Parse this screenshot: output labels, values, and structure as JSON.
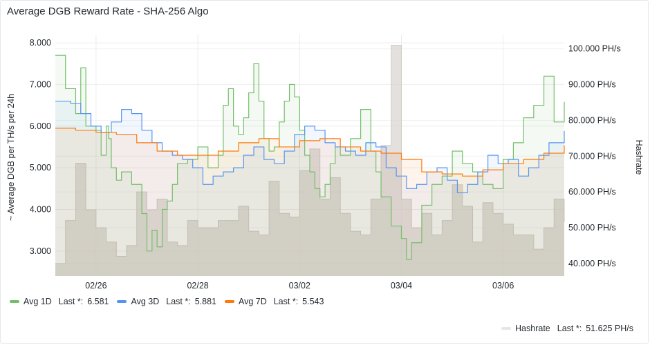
{
  "panel": {
    "title": "Average DGB Reward Rate - SHA-256 Algo"
  },
  "legend": {
    "items": [
      {
        "name": "Avg 1D",
        "last_label": "Last *:",
        "last_value": "6.581",
        "color": "#73bf69"
      },
      {
        "name": "Avg 3D",
        "last_label": "Last *:",
        "last_value": "5.881",
        "color": "#5794f2"
      },
      {
        "name": "Avg 7D",
        "last_label": "Last *:",
        "last_value": "5.543",
        "color": "#ff780a"
      }
    ],
    "hashrate": {
      "name": "Hashrate",
      "last_label": "Last *:",
      "last_value": "51.625 PH/s",
      "color": "#e0e0e0"
    }
  },
  "chart_data": {
    "type": "line",
    "xlabel": "",
    "ylabel": "~ Average DGB per TH/s per 24h",
    "y2label": "Hashrate",
    "x_range_days": [
      0,
      10.0
    ],
    "x_tick_labels": [
      "02/26",
      "02/28",
      "03/02",
      "03/04",
      "03/06"
    ],
    "x_tick_positions_days": [
      0.8,
      2.8,
      4.8,
      6.8,
      8.8
    ],
    "ylim": [
      2.4,
      8.2
    ],
    "y_ticks": [
      "3.000",
      "4.000",
      "5.000",
      "6.000",
      "7.000",
      "8.000"
    ],
    "y2lim": [
      36.5,
      104
    ],
    "y2_ticks": [
      "40.000 PH/s",
      "50.000 PH/s",
      "60.000 PH/s",
      "70.000 PH/s",
      "80.000 PH/s",
      "90.000 PH/s",
      "100.000 PH/s"
    ],
    "grid": true,
    "legend_placement": "bottom-left",
    "series": [
      {
        "name": "Avg 1D",
        "axis": "left",
        "color": "#73bf69",
        "x": [
          0.0,
          0.2,
          0.4,
          0.5,
          0.6,
          0.8,
          0.9,
          1.0,
          1.05,
          1.1,
          1.2,
          1.3,
          1.5,
          1.7,
          1.8,
          1.9,
          2.0,
          2.1,
          2.2,
          2.3,
          2.4,
          2.6,
          2.8,
          3.0,
          3.2,
          3.3,
          3.4,
          3.5,
          3.6,
          3.7,
          3.8,
          3.9,
          4.0,
          4.1,
          4.2,
          4.3,
          4.4,
          4.5,
          4.6,
          4.7,
          4.8,
          4.9,
          5.0,
          5.1,
          5.2,
          5.3,
          5.4,
          5.5,
          5.6,
          5.8,
          6.0,
          6.2,
          6.3,
          6.4,
          6.6,
          6.8,
          6.9,
          7.0,
          7.2,
          7.4,
          7.6,
          7.8,
          8.0,
          8.2,
          8.4,
          8.6,
          8.8,
          9.0,
          9.2,
          9.4,
          9.6,
          9.8,
          10.0
        ],
        "y": [
          7.7,
          6.9,
          6.3,
          7.4,
          6.0,
          5.9,
          5.3,
          6.0,
          5.7,
          5.0,
          4.7,
          4.9,
          4.6,
          3.9,
          3.0,
          3.5,
          3.1,
          4.0,
          4.2,
          4.6,
          5.1,
          5.2,
          5.5,
          5.0,
          5.3,
          6.5,
          6.9,
          6.0,
          5.8,
          6.2,
          6.8,
          7.5,
          6.6,
          5.7,
          5.4,
          5.5,
          6.1,
          6.6,
          7.0,
          6.7,
          5.9,
          5.3,
          4.9,
          4.5,
          4.3,
          4.6,
          5.1,
          5.5,
          5.3,
          5.7,
          6.4,
          5.4,
          4.9,
          4.3,
          3.6,
          3.3,
          2.8,
          3.2,
          4.1,
          4.6,
          4.8,
          5.4,
          5.1,
          4.9,
          4.6,
          4.5,
          5.2,
          5.6,
          6.2,
          6.5,
          7.2,
          6.1,
          6.58
        ]
      },
      {
        "name": "Avg 3D",
        "axis": "left",
        "color": "#5794f2",
        "x": [
          0.0,
          0.3,
          0.5,
          0.7,
          0.9,
          1.1,
          1.3,
          1.5,
          1.7,
          1.9,
          2.1,
          2.3,
          2.5,
          2.7,
          2.9,
          3.1,
          3.3,
          3.5,
          3.7,
          3.9,
          4.1,
          4.3,
          4.5,
          4.7,
          4.9,
          5.1,
          5.3,
          5.5,
          5.7,
          5.9,
          6.1,
          6.3,
          6.5,
          6.7,
          6.9,
          7.1,
          7.3,
          7.5,
          7.7,
          7.9,
          8.1,
          8.3,
          8.5,
          8.7,
          8.9,
          9.1,
          9.3,
          9.5,
          9.7,
          10.0
        ],
        "y": [
          6.6,
          6.55,
          6.3,
          6.0,
          5.85,
          6.1,
          6.4,
          6.3,
          5.9,
          5.6,
          5.4,
          5.3,
          5.2,
          5.0,
          4.6,
          4.8,
          4.9,
          5.0,
          5.3,
          5.5,
          5.2,
          5.1,
          5.4,
          5.8,
          6.0,
          5.9,
          5.6,
          5.5,
          5.4,
          5.3,
          5.6,
          5.5,
          5.0,
          4.8,
          4.5,
          4.6,
          4.9,
          5.0,
          4.7,
          4.4,
          4.6,
          4.9,
          5.3,
          5.1,
          5.2,
          4.8,
          5.0,
          5.3,
          5.6,
          5.88
        ]
      },
      {
        "name": "Avg 7D",
        "axis": "left",
        "color": "#ff780a",
        "x": [
          0.0,
          0.4,
          0.8,
          1.2,
          1.6,
          2.0,
          2.4,
          2.8,
          3.2,
          3.6,
          4.0,
          4.4,
          4.8,
          5.2,
          5.6,
          6.0,
          6.4,
          6.8,
          7.2,
          7.6,
          8.0,
          8.4,
          8.8,
          9.2,
          9.6,
          10.0
        ],
        "y": [
          5.95,
          5.9,
          5.85,
          5.8,
          5.6,
          5.4,
          5.3,
          5.3,
          5.4,
          5.6,
          5.7,
          5.5,
          5.65,
          5.7,
          5.5,
          5.4,
          5.35,
          5.2,
          4.9,
          4.85,
          4.8,
          4.95,
          5.1,
          5.2,
          5.35,
          5.54
        ]
      },
      {
        "name": "Hashrate",
        "axis": "right",
        "color": "#d8d8d8",
        "x": [
          0.0,
          0.2,
          0.4,
          0.6,
          0.8,
          1.0,
          1.2,
          1.4,
          1.6,
          1.8,
          2.0,
          2.2,
          2.4,
          2.6,
          2.8,
          3.0,
          3.2,
          3.4,
          3.6,
          3.8,
          4.0,
          4.2,
          4.4,
          4.6,
          4.8,
          5.0,
          5.2,
          5.4,
          5.6,
          5.8,
          6.0,
          6.2,
          6.4,
          6.6,
          6.8,
          7.0,
          7.2,
          7.4,
          7.6,
          7.8,
          8.0,
          8.2,
          8.4,
          8.6,
          8.8,
          9.0,
          9.2,
          9.4,
          9.6,
          9.8,
          10.0
        ],
        "y": [
          40,
          52,
          68,
          55,
          50,
          46,
          42,
          45,
          60,
          55,
          58,
          46,
          45,
          52,
          50,
          50,
          52,
          52,
          56,
          49,
          48,
          63,
          54,
          53,
          66,
          72,
          58,
          64,
          54,
          49,
          48,
          58,
          73,
          101,
          58,
          50,
          54,
          48,
          52,
          62,
          56,
          46,
          57,
          54,
          51,
          48,
          48,
          44,
          50,
          58,
          51.6
        ]
      }
    ]
  }
}
